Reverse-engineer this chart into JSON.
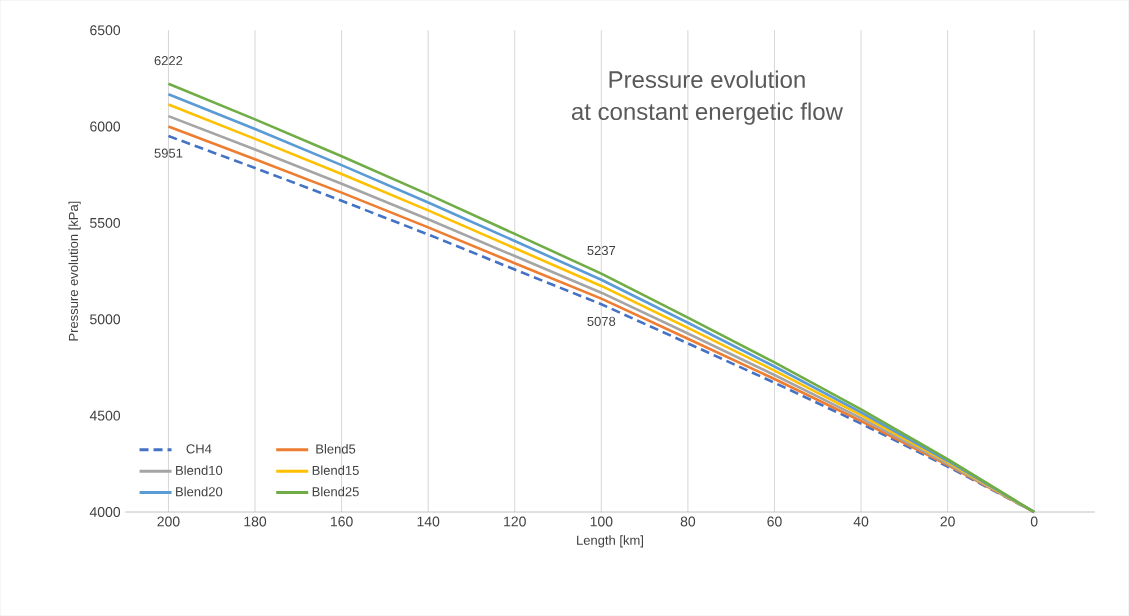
{
  "chart_data": {
    "type": "line",
    "title": "Pressure  evolution",
    "subtitle": "at constant  energetic  flow",
    "xlabel": "Length [km]",
    "ylabel": "Pressure evolution [kPa]",
    "x": [
      200,
      180,
      160,
      140,
      120,
      100,
      80,
      60,
      40,
      20,
      0
    ],
    "series": [
      {
        "name": "CH4",
        "color": "#4472c4",
        "line_style": "dashed",
        "values": [
          5951,
          5785,
          5615,
          5440,
          5258,
          5078,
          4875,
          4671,
          4459,
          4236,
          4000
        ],
        "value_labels": [
          "5951",
          null,
          null,
          null,
          null,
          "5078",
          null,
          null,
          null,
          null,
          null
        ]
      },
      {
        "name": "Blend5",
        "color": "#ed7d31",
        "values": [
          6000,
          5830,
          5657,
          5477,
          5291,
          5107,
          4899,
          4690,
          4472,
          4243,
          4000
        ]
      },
      {
        "name": "Blend10",
        "color": "#a5a5a5",
        "values": [
          6054,
          5881,
          5703,
          5519,
          5328,
          5138,
          4926,
          4711,
          4487,
          4250,
          4000
        ]
      },
      {
        "name": "Blend15",
        "color": "#ffc000",
        "values": [
          6114,
          5936,
          5754,
          5565,
          5369,
          5173,
          4955,
          4734,
          4503,
          4259,
          4000
        ]
      },
      {
        "name": "Blend20",
        "color": "#5b9bd5",
        "values": [
          6168,
          5987,
          5800,
          5606,
          5406,
          5205,
          4982,
          4755,
          4517,
          4266,
          4000
        ]
      },
      {
        "name": "Blend25",
        "color": "#70ad47",
        "values": [
          6222,
          6037,
          5846,
          5648,
          5443,
          5237,
          5009,
          4776,
          4532,
          4274,
          4000
        ],
        "value_labels": [
          "6222",
          null,
          null,
          null,
          null,
          "5237",
          null,
          null,
          null,
          null,
          null
        ]
      }
    ],
    "xlim": [
      210,
      -14
    ],
    "ylim": [
      4000,
      6500
    ],
    "xticks": [
      200,
      180,
      160,
      140,
      120,
      100,
      80,
      60,
      40,
      20,
      0
    ],
    "yticks": [
      4000,
      4500,
      5000,
      5500,
      6000,
      6500
    ],
    "grid": "x",
    "legend": "bottom left",
    "line_style": "solid",
    "marker": "none"
  }
}
